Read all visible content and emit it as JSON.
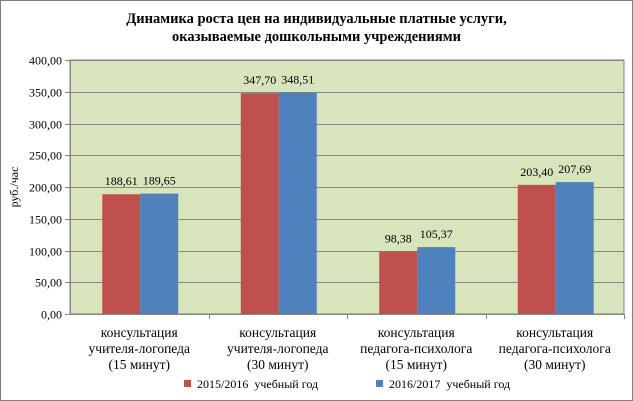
{
  "chart_data": {
    "type": "bar",
    "title_lines": [
      "Динамика роста цен на индивидуальные платные услуги,",
      "оказываемые дошкольными учреждениями"
    ],
    "ylabel": "руб./час",
    "xlabel": "",
    "ylim": [
      0,
      400
    ],
    "yticks": [
      "0,00",
      "50,00",
      "100,00",
      "150,00",
      "200,00",
      "250,00",
      "300,00",
      "350,00",
      "400,00"
    ],
    "grid": true,
    "legend_position": "bottom",
    "background_color": "#d8e4bc",
    "categories": [
      [
        "консультация",
        "учителя-логопеда",
        "(15 минут)"
      ],
      [
        "консультация",
        "учителя-логопеда",
        "(30 минут)"
      ],
      [
        "консультация",
        "педагога-психолога",
        "(15 минут)"
      ],
      [
        "консультация",
        "педагога-психолога",
        "(30 минут)"
      ]
    ],
    "series": [
      {
        "name": "2015/2016  учебный год",
        "color": "#c0504d",
        "values": [
          188.61,
          347.7,
          98.38,
          203.4
        ],
        "labels": [
          "188,61",
          "347,70",
          "98,38",
          "203,40"
        ]
      },
      {
        "name": "2016/2017  учебный год",
        "color": "#4f81bd",
        "values": [
          189.65,
          348.51,
          105.37,
          207.69
        ],
        "labels": [
          "189,65",
          "348,51",
          "105,37",
          "207,69"
        ]
      }
    ]
  }
}
